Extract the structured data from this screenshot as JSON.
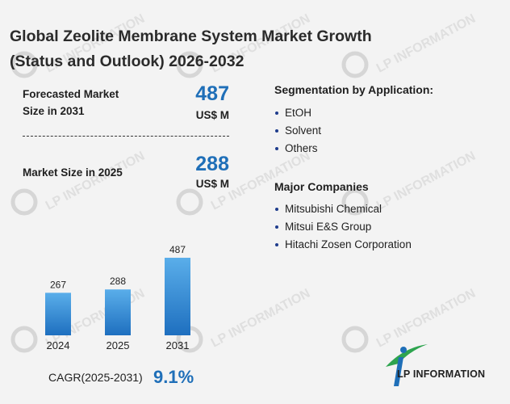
{
  "title_line1": "Global Zeolite Membrane System Market Growth",
  "title_line2": "(Status and Outlook) 2026-2032",
  "forecast": {
    "label_line1": "Forecasted Market",
    "label_line2": "Size in 2031",
    "value": "487",
    "unit": "US$ M"
  },
  "current": {
    "label": "Market Size in 2025",
    "value": "288",
    "unit": "US$ M"
  },
  "segmentation": {
    "title": "Segmentation by Application:",
    "items": [
      "EtOH",
      "Solvent",
      "Others"
    ]
  },
  "companies": {
    "title": "Major Companies",
    "items": [
      "Mitsubishi Chemical",
      "Mitsui E&S Group",
      "Hitachi Zosen Corporation"
    ]
  },
  "cagr": {
    "label": "CAGR(2025-2031)",
    "value": "9.1%"
  },
  "brand": {
    "name": "LP INFORMATION",
    "watermark_text": "LP INFORMATION"
  },
  "colors": {
    "accent": "#1f6fb8",
    "bar_top": "#5aaeea",
    "bar_bottom": "#1e6fbf",
    "logo_green": "#2ea44f",
    "logo_blue": "#1f6fb8"
  },
  "chart_data": {
    "type": "bar",
    "categories": [
      "2024",
      "2025",
      "2031"
    ],
    "values": [
      267,
      288,
      487
    ],
    "data_labels": [
      "267",
      "288",
      "487"
    ],
    "title": "",
    "xlabel": "",
    "ylabel": "",
    "ylim": [
      0,
      487
    ]
  }
}
